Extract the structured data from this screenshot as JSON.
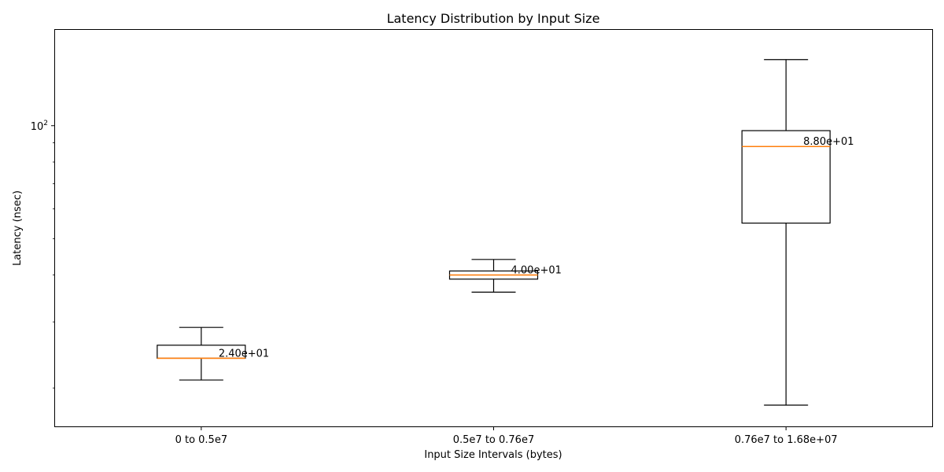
{
  "chart_data": {
    "type": "box",
    "title": "Latency Distribution by Input Size",
    "xlabel": "Input Size Intervals (bytes)",
    "ylabel": "Latency (nsec)",
    "yscale": "log",
    "ylim": [
      15.8,
      180
    ],
    "yticks": [
      {
        "base": "10",
        "exp": "2"
      }
    ],
    "grid": false,
    "legend": "none",
    "categories": [
      "0 to 0.5e7",
      "0.5e7 to 0.76e7",
      "0.76e7 to 1.68e+07"
    ],
    "boxes": [
      {
        "whisker_low": 21.0,
        "q1": 24.0,
        "median": 24.0,
        "q3": 26.0,
        "whisker_high": 29.0,
        "label": "2.40e+01"
      },
      {
        "whisker_low": 36.0,
        "q1": 39.0,
        "median": 40.0,
        "q3": 41.0,
        "whisker_high": 44.0,
        "label": "4.00e+01"
      },
      {
        "whisker_low": 18.0,
        "q1": 55.0,
        "median": 88.0,
        "q3": 97.0,
        "whisker_high": 150.0,
        "label": "8.80e+01"
      }
    ],
    "colors": {
      "box": "#000000",
      "median": "#ff7f0e"
    }
  }
}
